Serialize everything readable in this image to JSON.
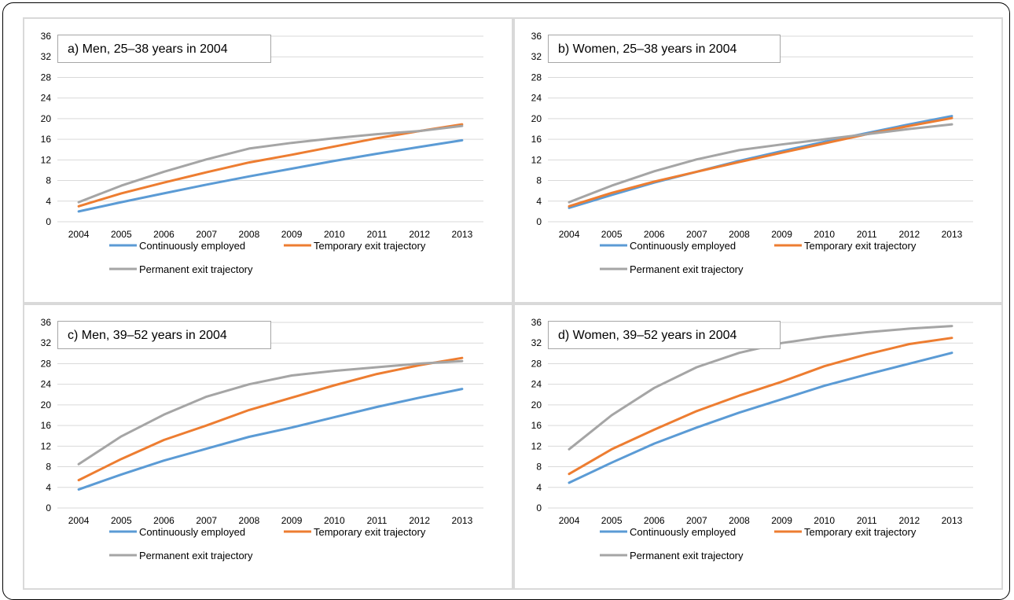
{
  "chart_data": [
    {
      "type": "line",
      "title": "a) Men, 25–38 years in 2004",
      "categories": [
        "2004",
        "2005",
        "2006",
        "2007",
        "2008",
        "2009",
        "2010",
        "2011",
        "2012",
        "2013"
      ],
      "ylim": [
        0,
        36
      ],
      "yticks": [
        0,
        4,
        8,
        12,
        16,
        20,
        24,
        28,
        32,
        36
      ],
      "grid": true,
      "legend_position": "bottom",
      "series": [
        {
          "name": "Continuously employed",
          "color": "#5b9bd5",
          "values": [
            2.0,
            3.8,
            5.5,
            7.2,
            8.8,
            10.3,
            11.8,
            13.2,
            14.5,
            15.8
          ]
        },
        {
          "name": "Temporary exit trajectory",
          "color": "#ed7d31",
          "values": [
            3.0,
            5.5,
            7.6,
            9.6,
            11.5,
            13.0,
            14.6,
            16.2,
            17.6,
            18.9
          ]
        },
        {
          "name": "Permanent exit trajectory",
          "color": "#a5a5a5",
          "values": [
            3.8,
            7.0,
            9.7,
            12.1,
            14.2,
            15.3,
            16.2,
            17.0,
            17.6,
            18.6
          ]
        }
      ]
    },
    {
      "type": "line",
      "title": "b) Women, 25–38 years in 2004",
      "categories": [
        "2004",
        "2005",
        "2006",
        "2007",
        "2008",
        "2009",
        "2010",
        "2011",
        "2012",
        "2013"
      ],
      "ylim": [
        0,
        36
      ],
      "yticks": [
        0,
        4,
        8,
        12,
        16,
        20,
        24,
        28,
        32,
        36
      ],
      "grid": true,
      "legend_position": "bottom",
      "series": [
        {
          "name": "Continuously employed",
          "color": "#5b9bd5",
          "values": [
            2.7,
            5.2,
            7.6,
            9.7,
            11.8,
            13.7,
            15.5,
            17.2,
            18.9,
            20.5
          ]
        },
        {
          "name": "Temporary exit trajectory",
          "color": "#ed7d31",
          "values": [
            3.0,
            5.6,
            7.8,
            9.7,
            11.6,
            13.4,
            15.2,
            17.0,
            18.6,
            20.1
          ]
        },
        {
          "name": "Permanent exit trajectory",
          "color": "#a5a5a5",
          "values": [
            3.8,
            7.0,
            9.8,
            12.1,
            13.9,
            15.0,
            16.0,
            17.0,
            18.0,
            18.9
          ]
        }
      ]
    },
    {
      "type": "line",
      "title": "c) Men, 39–52 years in 2004",
      "categories": [
        "2004",
        "2005",
        "2006",
        "2007",
        "2008",
        "2009",
        "2010",
        "2011",
        "2012",
        "2013"
      ],
      "ylim": [
        0,
        36
      ],
      "yticks": [
        0,
        4,
        8,
        12,
        16,
        20,
        24,
        28,
        32,
        36
      ],
      "grid": true,
      "legend_position": "bottom",
      "series": [
        {
          "name": "Continuously employed",
          "color": "#5b9bd5",
          "values": [
            3.6,
            6.5,
            9.2,
            11.5,
            13.8,
            15.6,
            17.6,
            19.6,
            21.4,
            23.1
          ]
        },
        {
          "name": "Temporary exit trajectory",
          "color": "#ed7d31",
          "values": [
            5.4,
            9.5,
            13.2,
            16.0,
            19.0,
            21.4,
            23.8,
            26.0,
            27.7,
            29.1
          ]
        },
        {
          "name": "Permanent exit trajectory",
          "color": "#a5a5a5",
          "values": [
            8.5,
            13.9,
            18.1,
            21.6,
            24.0,
            25.7,
            26.6,
            27.3,
            28.0,
            28.5
          ]
        }
      ]
    },
    {
      "type": "line",
      "title": "d) Women, 39–52 years in 2004",
      "categories": [
        "2004",
        "2005",
        "2006",
        "2007",
        "2008",
        "2009",
        "2010",
        "2011",
        "2012",
        "2013"
      ],
      "ylim": [
        0,
        36
      ],
      "yticks": [
        0,
        4,
        8,
        12,
        16,
        20,
        24,
        28,
        32,
        36
      ],
      "grid": true,
      "legend_position": "bottom",
      "series": [
        {
          "name": "Continuously employed",
          "color": "#5b9bd5",
          "values": [
            4.9,
            8.8,
            12.5,
            15.6,
            18.5,
            21.1,
            23.7,
            25.9,
            28.0,
            30.1
          ]
        },
        {
          "name": "Temporary exit trajectory",
          "color": "#ed7d31",
          "values": [
            6.6,
            11.4,
            15.2,
            18.8,
            21.8,
            24.5,
            27.5,
            29.8,
            31.8,
            33.0
          ]
        },
        {
          "name": "Permanent exit trajectory",
          "color": "#a5a5a5",
          "values": [
            11.4,
            18.0,
            23.3,
            27.3,
            30.1,
            32.0,
            33.2,
            34.1,
            34.8,
            35.3
          ]
        }
      ]
    }
  ]
}
